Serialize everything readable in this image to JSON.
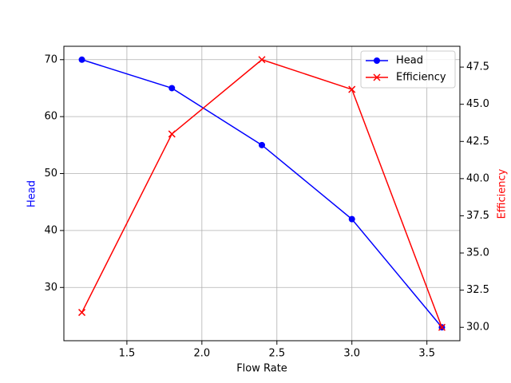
{
  "chart_data": {
    "type": "line",
    "x_label": "Flow Rate",
    "y_label": "Head",
    "y2_label": "Efficiency",
    "x": [
      1.2,
      1.8,
      2.4,
      3.0,
      3.6
    ],
    "series": [
      {
        "name": "Head",
        "color": "#0000ff",
        "marker": "o",
        "values": [
          70,
          65,
          55,
          42,
          23
        ]
      },
      {
        "name": "Efficiency",
        "color": "#ff0000",
        "marker": "x",
        "axis": "y2",
        "values": [
          31,
          43,
          48,
          46,
          30
        ]
      }
    ],
    "xlim": [
      1.08,
      3.72
    ],
    "xticks": [
      1.5,
      {
        "value": 2.0,
        "label": "2.0"
      },
      2.5,
      {
        "value": 3.0,
        "label": "3.0"
      },
      3.5
    ],
    "ylim": [
      20.65,
      72.35
    ],
    "yticks": [
      30,
      40,
      50,
      60,
      70
    ],
    "y2lim": [
      29.1,
      48.9
    ],
    "y2ticks": [
      {
        "value": 30,
        "label": "30.0"
      },
      32.5,
      {
        "value": 35,
        "label": "35.0"
      },
      37.5,
      {
        "value": 40,
        "label": "40.0"
      },
      42.5,
      {
        "value": 45,
        "label": "45.0"
      },
      47.5
    ],
    "grid": true,
    "legend_position": "upper-right"
  }
}
